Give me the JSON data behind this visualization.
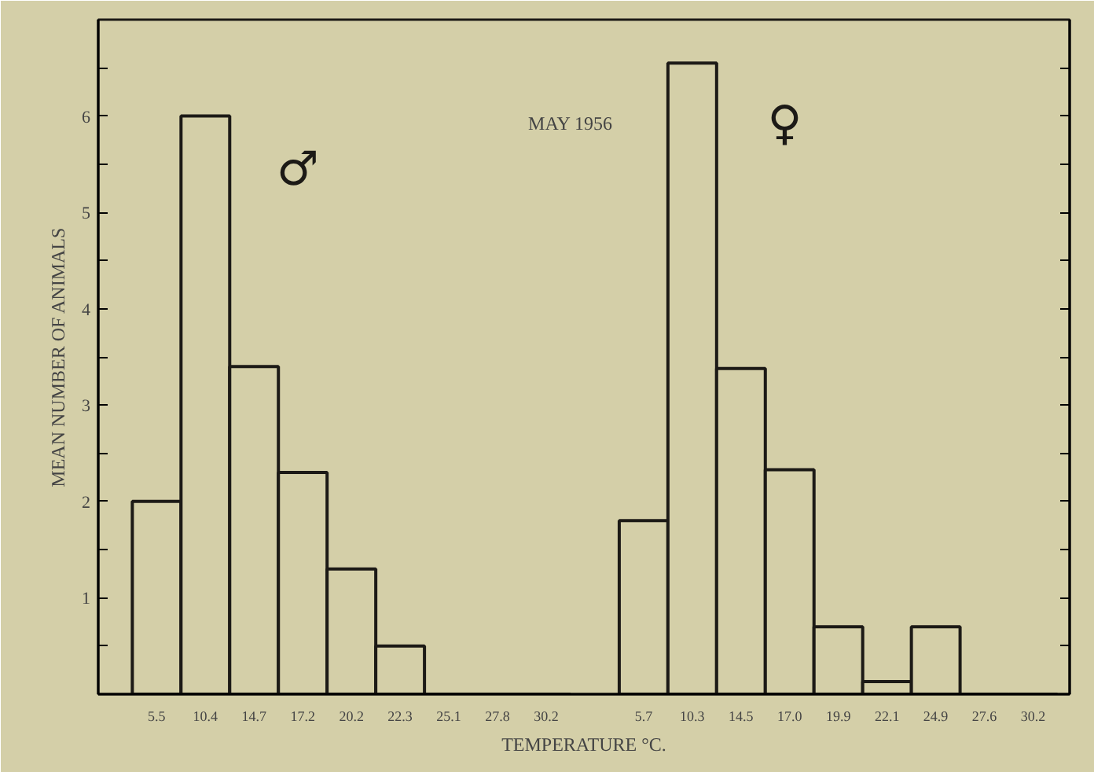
{
  "chart_data": {
    "type": "bar",
    "xlabel": "TEMPERATURE °C.",
    "ylabel": "MEAN NUMBER OF ANIMALS",
    "annotations": [
      "MAY 1956"
    ],
    "categories": [
      "5.5",
      "10.4",
      "14.7",
      "17.2",
      "20.2",
      "22.3",
      "25.1",
      "27.8",
      "30.2",
      null,
      "5.7",
      "10.3",
      "14.5",
      "17.0",
      "19.9",
      "22.1",
      "24.9",
      "27.6",
      "30.2"
    ],
    "series": [
      {
        "name": "♂",
        "color": "#1c1a16",
        "values": [
          2.0,
          6.0,
          3.4,
          2.3,
          1.3,
          0.5,
          0,
          0,
          0,
          null,
          null,
          null,
          null,
          null,
          null,
          null,
          null,
          null,
          null
        ]
      },
      {
        "name": "♀",
        "color": "#1c1a16",
        "values": [
          null,
          null,
          null,
          null,
          null,
          null,
          null,
          null,
          null,
          null,
          1.8,
          6.55,
          3.38,
          2.33,
          0.7,
          0.13,
          0.7,
          0,
          0
        ]
      }
    ],
    "ylim": [
      0,
      7
    ],
    "yticks": [
      {
        "value": 0.5,
        "label": null
      },
      1,
      {
        "value": 1.5,
        "label": null
      },
      2,
      {
        "value": 2.5,
        "label": null
      },
      3,
      {
        "value": 3.5,
        "label": null
      },
      4,
      {
        "value": 4.5,
        "label": null
      },
      5,
      {
        "value": 5.5,
        "label": null
      },
      6,
      {
        "value": 6.5,
        "label": null
      }
    ],
    "grid": false
  }
}
